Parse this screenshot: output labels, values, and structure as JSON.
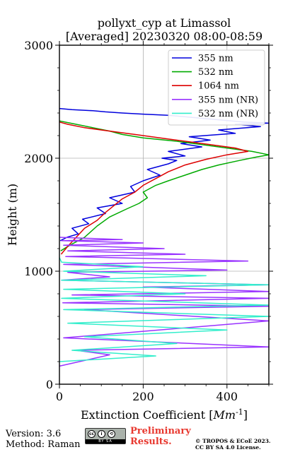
{
  "chart_data": {
    "type": "line",
    "title_line1": "pollyxt_cyp at Limassol",
    "title_line2": "[Averaged] 20230320 08:00-08:59",
    "xlabel": "Extinction Coefficient [Mm^-1]",
    "ylabel": "Height (m)",
    "xlim": [
      0,
      500
    ],
    "ylim": [
      0,
      3000
    ],
    "x_ticks": [
      "0",
      "200",
      "400"
    ],
    "x_tick_values": [
      0,
      200,
      400
    ],
    "y_ticks": [
      "0",
      "1000",
      "2000",
      "3000"
    ],
    "y_tick_values": [
      0,
      1000,
      2000,
      3000
    ],
    "grid": true,
    "legend_position": "top-right",
    "series": [
      {
        "name": "355 nm",
        "color": "#0000dd",
        "x": [
          2,
          18,
          45,
          30,
          70,
          55,
          110,
          90,
          150,
          120,
          180,
          170,
          200,
          240,
          210,
          260,
          280,
          245,
          300,
          260,
          340,
          290,
          360,
          310,
          420,
          380,
          480,
          420,
          500,
          440,
          380,
          320,
          260,
          200,
          150,
          110,
          80,
          30,
          0
        ],
        "y": [
          1270,
          1300,
          1330,
          1380,
          1420,
          1460,
          1510,
          1560,
          1600,
          1650,
          1700,
          1750,
          1800,
          1850,
          1900,
          1950,
          1980,
          2000,
          2020,
          2060,
          2100,
          2130,
          2160,
          2190,
          2220,
          2250,
          2280,
          2300,
          2310,
          2320,
          2340,
          2360,
          2380,
          2390,
          2400,
          2410,
          2420,
          2430,
          2440
        ]
      },
      {
        "name": "532 nm",
        "color": "#00aa00",
        "x": [
          3,
          25,
          60,
          90,
          120,
          160,
          190,
          210,
          200,
          230,
          260,
          300,
          340,
          380,
          430,
          470,
          500,
          460,
          400,
          340,
          280,
          200,
          150,
          120,
          80,
          40,
          0
        ],
        "y": [
          1180,
          1230,
          1300,
          1400,
          1480,
          1550,
          1600,
          1650,
          1700,
          1760,
          1800,
          1850,
          1900,
          1940,
          1980,
          2010,
          2030,
          2060,
          2090,
          2120,
          2150,
          2180,
          2210,
          2240,
          2270,
          2300,
          2330
        ]
      },
      {
        "name": "1064 nm",
        "color": "#dd0000",
        "x": [
          4,
          20,
          40,
          60,
          90,
          110,
          130,
          150,
          180,
          200,
          230,
          260,
          300,
          350,
          400,
          450,
          420,
          360,
          300,
          240,
          180,
          120,
          60,
          20,
          0
        ],
        "y": [
          1150,
          1220,
          1300,
          1380,
          1450,
          1520,
          1580,
          1640,
          1700,
          1760,
          1820,
          1880,
          1940,
          1990,
          2030,
          2060,
          2090,
          2120,
          2150,
          2180,
          2210,
          2240,
          2270,
          2300,
          2320
        ]
      },
      {
        "name": "355 nm (NR)",
        "color": "#9933ff",
        "x": [
          0,
          120,
          40,
          500,
          10,
          500,
          60,
          500,
          8,
          500,
          30,
          500,
          200,
          500,
          5,
          120,
          20,
          400,
          10,
          450,
          15,
          300,
          20,
          250,
          10,
          200,
          5,
          150,
          0
        ],
        "y": [
          160,
          260,
          300,
          330,
          410,
          560,
          660,
          690,
          720,
          760,
          790,
          820,
          860,
          880,
          920,
          950,
          990,
          1010,
          1060,
          1090,
          1130,
          1150,
          1180,
          1200,
          1230,
          1250,
          1270,
          1280,
          1300
        ]
      },
      {
        "name": "532 nm (NR)",
        "color": "#33eecc",
        "x": [
          0,
          230,
          30,
          280,
          60,
          400,
          20,
          500,
          10,
          500,
          5,
          300,
          10,
          500,
          5,
          350,
          10,
          200,
          5,
          0
        ],
        "y": [
          200,
          250,
          300,
          360,
          420,
          480,
          540,
          600,
          660,
          700,
          760,
          800,
          840,
          880,
          920,
          960,
          1000,
          1040,
          1080,
          1120
        ]
      }
    ]
  },
  "footer": {
    "version": "Version: 3.6",
    "method": "Method: Raman",
    "preliminary_line1": "Preliminary",
    "preliminary_line2": "Results.",
    "copyright_line1": "© TROPOS & ECoE 2023.",
    "copyright_line2": "CC BY SA 4.0 License.",
    "badge_text": "BY SA"
  },
  "colors": {
    "preliminary": "#e8382f",
    "grid": "#b0b0b0"
  }
}
